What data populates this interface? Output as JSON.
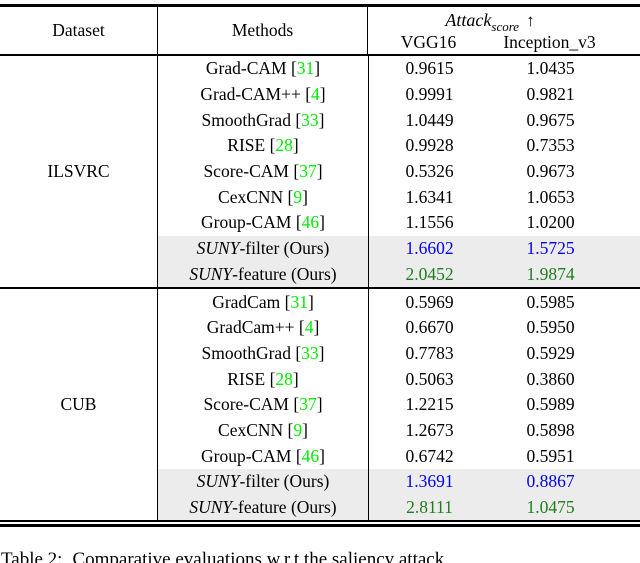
{
  "table": {
    "header": {
      "dataset": "Dataset",
      "methods": "Methods",
      "attack_label": "Attack",
      "attack_sub": "score",
      "attack_arrow": "↑",
      "vgg16": "VGG16",
      "inception_v3": "Inception_v3"
    },
    "cite_open": "[",
    "cite_close": "]",
    "sections": [
      {
        "dataset": "ILSVRC",
        "rows": [
          {
            "method": "Grad-CAM",
            "cite": "31",
            "vgg16": "0.9615",
            "inception_v3": "1.0435",
            "highlight": false,
            "color": ""
          },
          {
            "method": "Grad-CAM++",
            "cite": "4",
            "vgg16": "0.9991",
            "inception_v3": "0.9821",
            "highlight": false,
            "color": ""
          },
          {
            "method": "SmoothGrad",
            "cite": "33",
            "vgg16": "1.0449",
            "inception_v3": "0.9675",
            "highlight": false,
            "color": ""
          },
          {
            "method": "RISE",
            "cite": "28",
            "vgg16": "0.9928",
            "inception_v3": "0.7353",
            "highlight": false,
            "color": ""
          },
          {
            "method": "Score-CAM",
            "cite": "37",
            "vgg16": "0.5326",
            "inception_v3": "0.9673",
            "highlight": false,
            "color": ""
          },
          {
            "method": "CexCNN",
            "cite": "9",
            "vgg16": "1.6341",
            "inception_v3": "1.0653",
            "highlight": false,
            "color": ""
          },
          {
            "method": "Group-CAM",
            "cite": "46",
            "vgg16": "1.1556",
            "inception_v3": "1.0200",
            "highlight": false,
            "color": ""
          },
          {
            "method_italic": "SUNY",
            "method": "-filter (Ours)",
            "vgg16": "1.6602",
            "inception_v3": "1.5725",
            "highlight": true,
            "color": "blue"
          },
          {
            "method_italic": "SUNY",
            "method": "-feature (Ours)",
            "vgg16": "2.0452",
            "inception_v3": "1.9874",
            "highlight": true,
            "color": "green"
          }
        ]
      },
      {
        "dataset": "CUB",
        "rows": [
          {
            "method": "GradCam",
            "cite": "31",
            "vgg16": "0.5969",
            "inception_v3": "0.5985",
            "highlight": false,
            "color": ""
          },
          {
            "method": "GradCam++",
            "cite": "4",
            "vgg16": "0.6670",
            "inception_v3": "0.5950",
            "highlight": false,
            "color": ""
          },
          {
            "method": "SmoothGrad",
            "cite": "33",
            "vgg16": "0.7783",
            "inception_v3": "0.5929",
            "highlight": false,
            "color": ""
          },
          {
            "method": "RISE",
            "cite": "28",
            "vgg16": "0.5063",
            "inception_v3": "0.3860",
            "highlight": false,
            "color": ""
          },
          {
            "method": "Score-CAM",
            "cite": "37",
            "vgg16": "1.2215",
            "inception_v3": "0.5989",
            "highlight": false,
            "color": ""
          },
          {
            "method": "CexCNN",
            "cite": "9",
            "vgg16": "1.2673",
            "inception_v3": "0.5898",
            "highlight": false,
            "color": ""
          },
          {
            "method": "Group-CAM",
            "cite": "46",
            "vgg16": "0.6742",
            "inception_v3": "0.5951",
            "highlight": false,
            "color": ""
          },
          {
            "method_italic": "SUNY",
            "method": "-filter (Ours)",
            "vgg16": "1.3691",
            "inception_v3": "0.8867",
            "highlight": true,
            "color": "blue"
          },
          {
            "method_italic": "SUNY",
            "method": "-feature (Ours)",
            "vgg16": "2.8111",
            "inception_v3": "1.0475",
            "highlight": true,
            "color": "green"
          }
        ]
      }
    ]
  },
  "caption": {
    "label": "Table 2:",
    "text": "Comparative evaluations w.r.t the saliency attack"
  },
  "colors": {
    "cite_green": "#00ee00",
    "value_blue": "#0000ee",
    "value_green": "#1e7e1e",
    "highlight_bg": "#ececec"
  }
}
